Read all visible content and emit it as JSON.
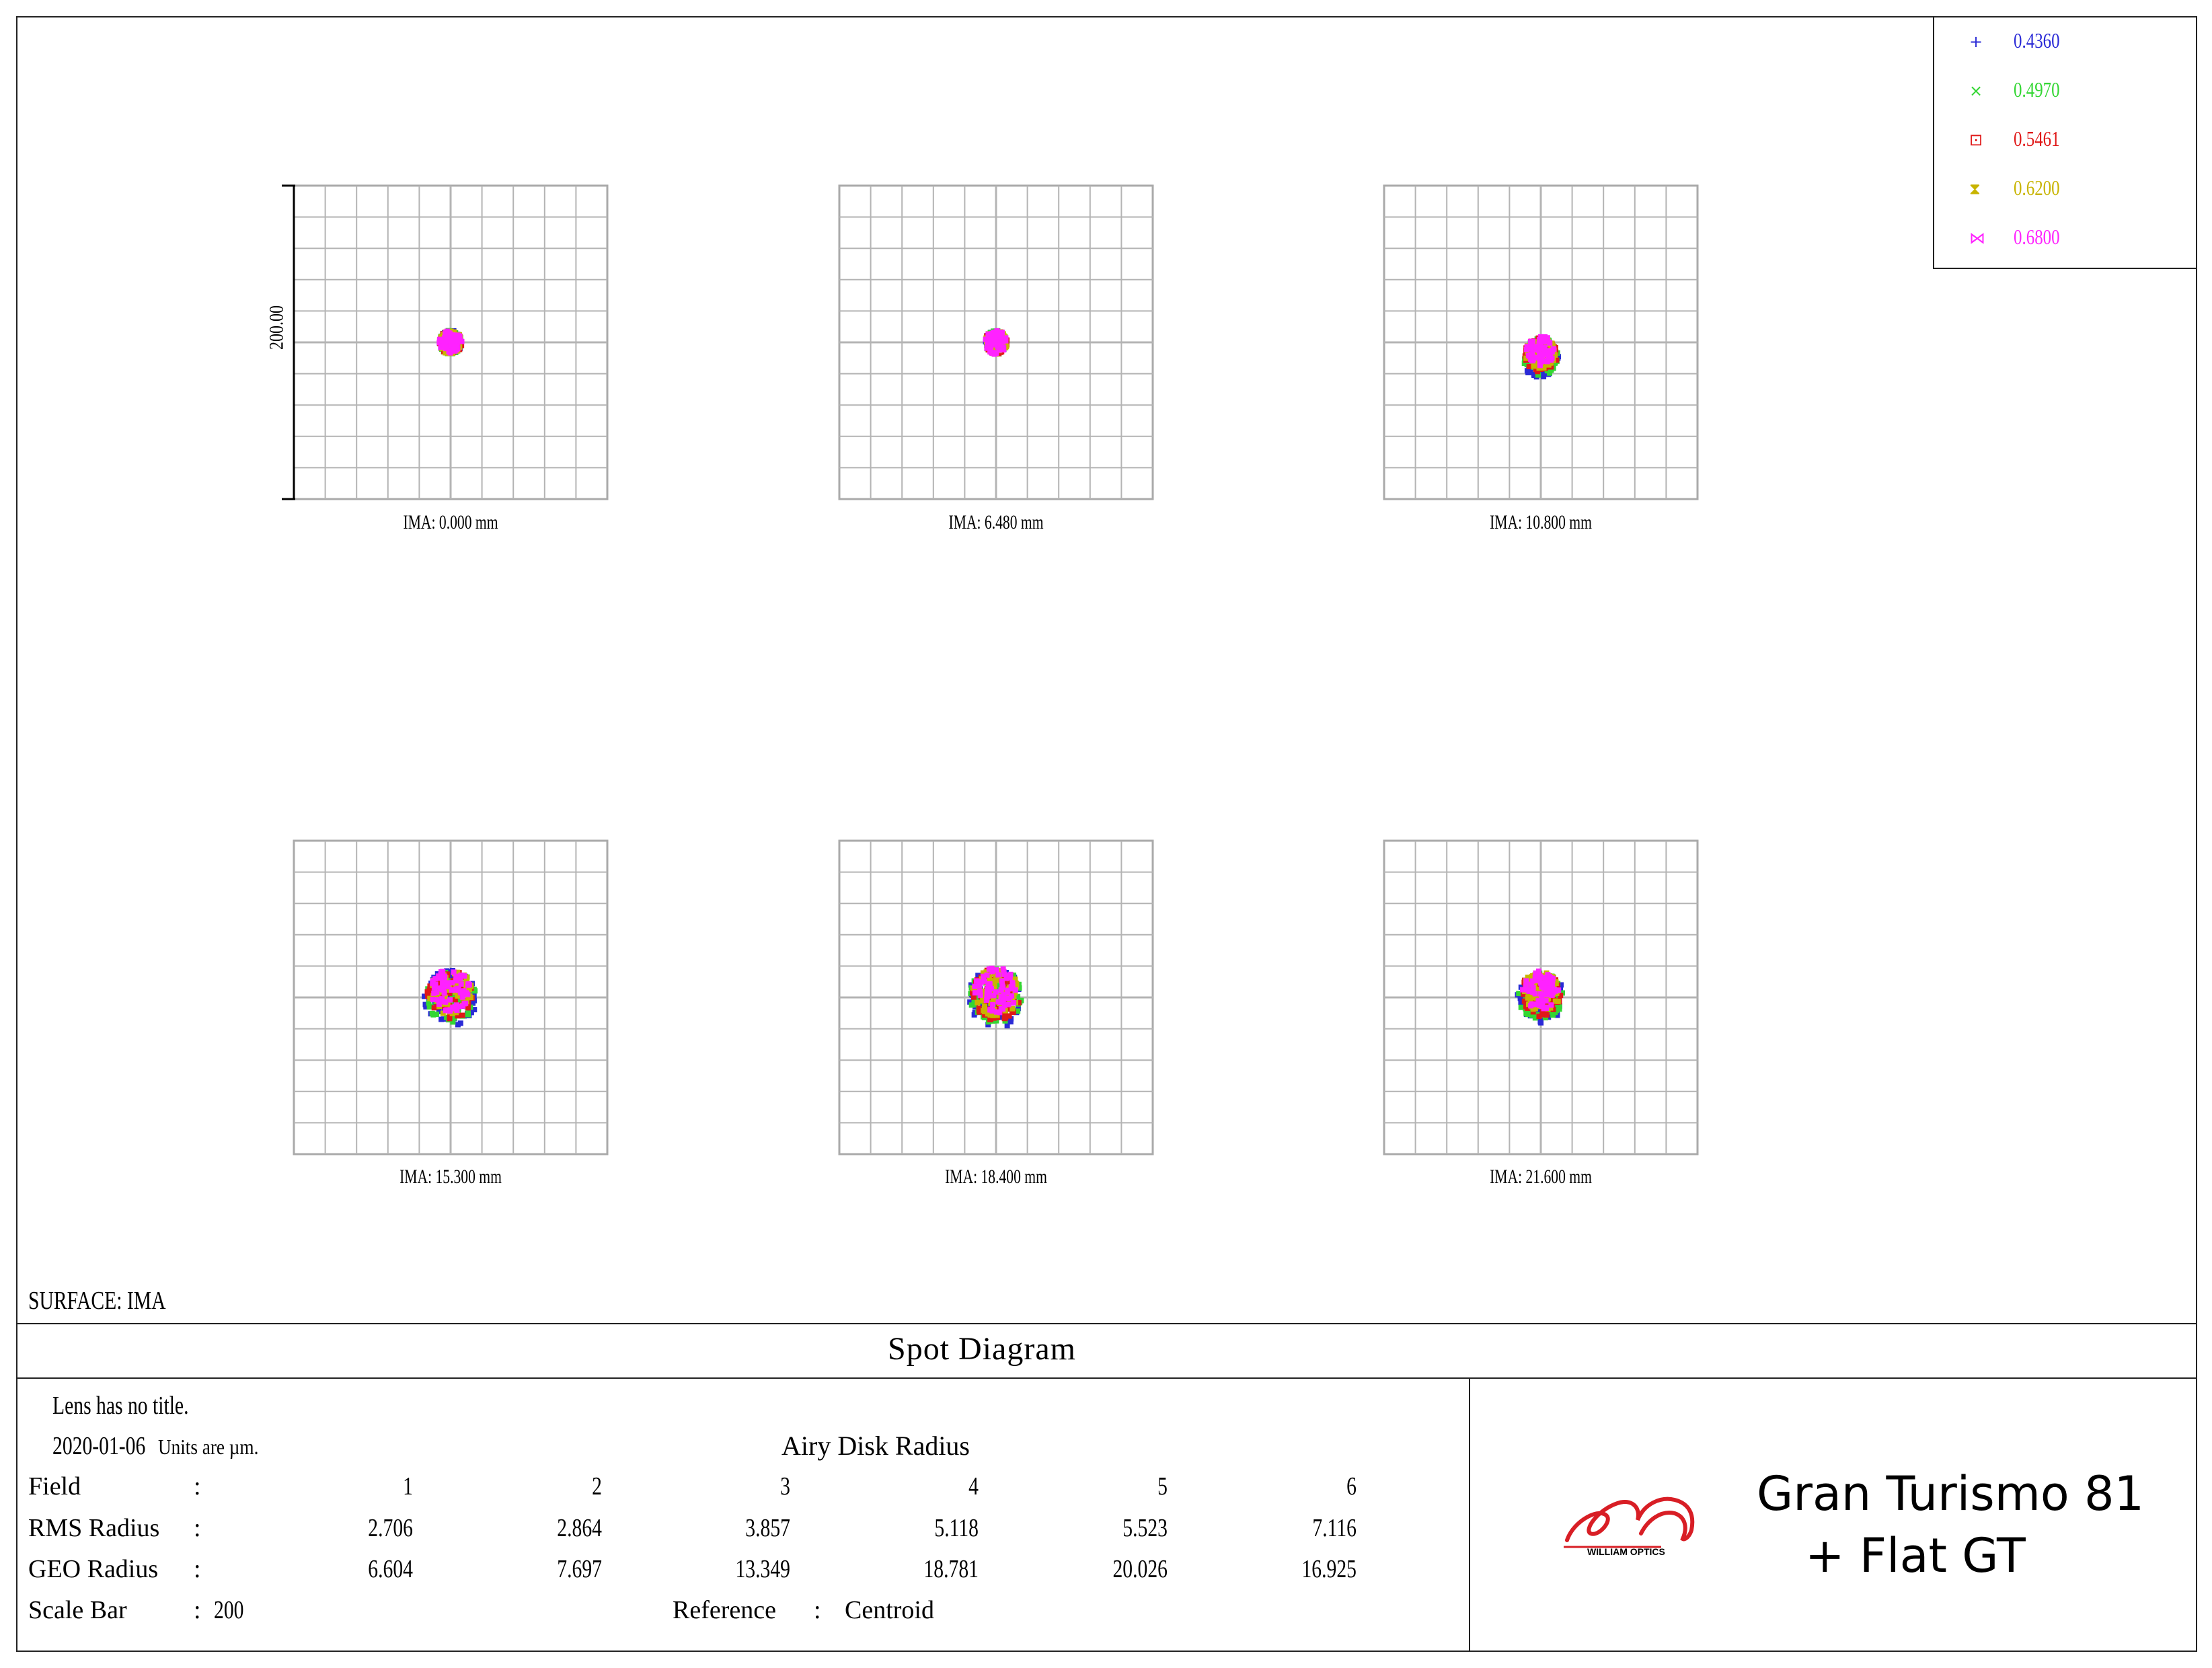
{
  "chart_data": {
    "type": "scatter",
    "title": "Spot Diagram",
    "scale_bar_label": "200.00",
    "grid": true,
    "legend_placement": "top-right",
    "wavelengths": [
      {
        "label": "0.4360",
        "color": "#2a2ad6",
        "marker": "+"
      },
      {
        "label": "0.4970",
        "color": "#33d633",
        "marker": "×"
      },
      {
        "label": "0.5461",
        "color": "#e01818",
        "marker": "⊡"
      },
      {
        "label": "0.6200",
        "color": "#c8b400",
        "marker": "⧗"
      },
      {
        "label": "0.6800",
        "color": "#ff22ff",
        "marker": "⋈"
      }
    ],
    "fields": [
      {
        "label": "IMA:  0.000 mm",
        "rms": 2.706,
        "geo": 6.604,
        "centroid_offset": [
          0,
          0
        ]
      },
      {
        "label": "IMA:  6.480 mm",
        "rms": 2.864,
        "geo": 7.697,
        "centroid_offset": [
          0,
          0
        ]
      },
      {
        "label": "IMA:  10.800 mm",
        "rms": 3.857,
        "geo": 13.349,
        "centroid_offset": [
          0,
          -8
        ]
      },
      {
        "label": "IMA:  15.300 mm",
        "rms": 5.118,
        "geo": 18.781,
        "centroid_offset": [
          0,
          2
        ]
      },
      {
        "label": "IMA:  18.400 mm",
        "rms": 5.523,
        "geo": 20.026,
        "centroid_offset": [
          0,
          2
        ]
      },
      {
        "label": "IMA:  21.600 mm",
        "rms": 7.116,
        "geo": 16.925,
        "centroid_offset": [
          0,
          2
        ]
      }
    ]
  },
  "surface_label": "SURFACE: IMA",
  "diagram_title": "Spot Diagram",
  "info": {
    "lens_title": "Lens has no title.",
    "date": "2020-01-06",
    "units": "Units are µm.",
    "airy_label": "Airy Disk Radius",
    "field_label": "Field",
    "rms_label": "RMS Radius",
    "geo_label": "GEO Radius",
    "scale_label": "Scale Bar",
    "scale_value": "200",
    "reference_label": "Reference",
    "reference_value": "Centroid",
    "colon": ":",
    "field_numbers": [
      "1",
      "2",
      "3",
      "4",
      "5",
      "6"
    ],
    "rms_values": [
      "2.706",
      "2.864",
      "3.857",
      "5.118",
      "5.523",
      "7.116"
    ],
    "geo_values": [
      "6.604",
      "7.697",
      "13.349",
      "18.781",
      "20.026",
      "16.925"
    ]
  },
  "brand": {
    "logo_text": "WILLIAM OPTICS",
    "logo_color": "#d81e25",
    "line1": "Gran Turismo 81",
    "line2": "+  Flat GT"
  }
}
